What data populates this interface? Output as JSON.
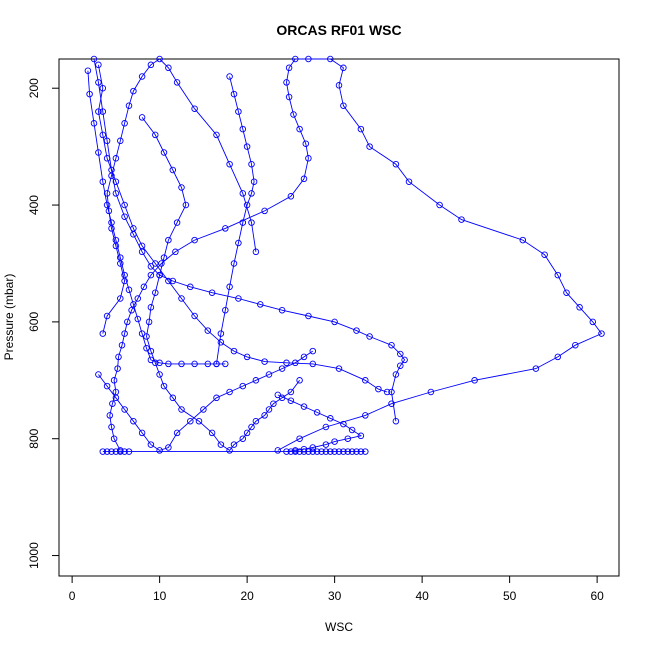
{
  "chart_data": {
    "type": "line",
    "title": "ORCAS RF01 WSC",
    "xlabel": "WSC",
    "ylabel": "Pressure (mbar)",
    "xlim": [
      -1.5,
      62.5
    ],
    "ylim": [
      1035,
      150
    ],
    "y_reversed": true,
    "x_ticks": [
      0,
      10,
      20,
      30,
      40,
      50,
      60
    ],
    "y_ticks": [
      200,
      400,
      600,
      800,
      1000
    ],
    "grid": false,
    "legend": "none",
    "color": "#0000ff",
    "marker": "open-circle",
    "series": [
      {
        "x": [
          5.5,
          4.8,
          4.5,
          4.3,
          4.6,
          5.0,
          4.8,
          5.2,
          5.3,
          5.7,
          6.0,
          6.3,
          6.8,
          7.5,
          8.2,
          9.0,
          10.2,
          11.8,
          14.0,
          17.5,
          22.0,
          25.0,
          26.5,
          27.0,
          26.7,
          26.0,
          25.3,
          24.8,
          24.5,
          24.8,
          25.5,
          27.0,
          29.5,
          31.0,
          30.5,
          31.0,
          33.0,
          34.0,
          37.0,
          38.5,
          42.0,
          44.5,
          51.5,
          54.0,
          55.5,
          56.5,
          58.0,
          59.5,
          60.5,
          57.5,
          55.5,
          53.0,
          46.0,
          41.0,
          36.5,
          33.5,
          29.0,
          26.0,
          23.5
        ],
        "y": [
          820,
          800,
          780,
          760,
          740,
          720,
          700,
          680,
          660,
          640,
          620,
          600,
          580,
          560,
          540,
          520,
          500,
          480,
          460,
          440,
          410,
          385,
          355,
          320,
          295,
          270,
          245,
          215,
          190,
          165,
          150,
          150,
          150,
          165,
          195,
          230,
          270,
          300,
          330,
          360,
          400,
          425,
          460,
          485,
          520,
          550,
          575,
          600,
          620,
          640,
          660,
          680,
          700,
          720,
          740,
          760,
          780,
          800,
          820
        ]
      },
      {
        "x": [
          8.0,
          9.5,
          10.5,
          11.5,
          12.5,
          13.0,
          12.0,
          11.0,
          10.5,
          10.0,
          9.5,
          9.0,
          8.8,
          8.5,
          9.0,
          9.5,
          10.0,
          10.5,
          11.5,
          12.5,
          14.5,
          16.0,
          17.0,
          18.0,
          18.5,
          19.5,
          20.0,
          20.5,
          21.0,
          22.0,
          22.5,
          23.0,
          24.0,
          25.0,
          26.0
        ],
        "y": [
          250,
          280,
          310,
          340,
          370,
          400,
          430,
          460,
          490,
          520,
          550,
          575,
          600,
          625,
          650,
          670,
          690,
          710,
          730,
          750,
          770,
          790,
          810,
          820,
          810,
          800,
          790,
          780,
          770,
          760,
          750,
          740,
          730,
          720,
          700
        ]
      },
      {
        "x": [
          3.5,
          4.0,
          5.5,
          6.0,
          5.5,
          5.0,
          4.5,
          4.2,
          4.0,
          4.5,
          5.0,
          5.5,
          6.0,
          6.5,
          7.0,
          8.0,
          9.0,
          10.0,
          11.0,
          12.0,
          14.0,
          16.5,
          18.0,
          19.5,
          20.5,
          21.0
        ],
        "y": [
          620,
          590,
          560,
          530,
          500,
          470,
          440,
          410,
          380,
          350,
          320,
          290,
          260,
          230,
          205,
          180,
          160,
          150,
          165,
          190,
          235,
          280,
          330,
          380,
          430,
          480
        ]
      },
      {
        "x": [
          1.8,
          2.0,
          2.5,
          3.0,
          3.5,
          4.0,
          4.5,
          5.0,
          5.5,
          6.0,
          6.5,
          7.0,
          7.5,
          8.0,
          8.5,
          9.0,
          10.0,
          11.0,
          12.5,
          14.0,
          15.5,
          16.5,
          17.5
        ],
        "y": [
          170,
          210,
          260,
          310,
          360,
          400,
          430,
          460,
          490,
          520,
          545,
          570,
          595,
          620,
          645,
          665,
          670,
          672,
          672,
          672,
          672,
          672,
          672
        ]
      },
      {
        "x": [
          16.5,
          17.0,
          17.5,
          18.0,
          18.5,
          19.0,
          19.5,
          20.0,
          20.5,
          20.8,
          20.5,
          20.0,
          19.5,
          19.0,
          18.5,
          18.0
        ],
        "y": [
          672,
          620,
          580,
          540,
          500,
          465,
          430,
          400,
          380,
          360,
          330,
          300,
          270,
          240,
          210,
          180
        ]
      },
      {
        "x": [
          2.5,
          3.0,
          3.5,
          4.0,
          4.5,
          5.0,
          6.0,
          7.0,
          8.0,
          9.0,
          10.0,
          11.5,
          13.5,
          16.0,
          19.0,
          21.5,
          24.0,
          27.0,
          30.0,
          32.5,
          34.0,
          36.5,
          37.5,
          38.0,
          37.5,
          37.0,
          36.5,
          37.0
        ],
        "y": [
          150,
          190,
          240,
          290,
          340,
          380,
          420,
          450,
          480,
          505,
          520,
          530,
          540,
          550,
          560,
          570,
          580,
          590,
          600,
          615,
          625,
          640,
          655,
          665,
          675,
          690,
          720,
          770
        ]
      },
      {
        "x": [
          3.0,
          3.5,
          3.0,
          3.5,
          4.0,
          5.0,
          6.0,
          7.0,
          8.0,
          9.5,
          11.0,
          12.5,
          14.0,
          15.5,
          17.0,
          18.5,
          20.0,
          22.0,
          24.5,
          27.5,
          30.5,
          33.5,
          35.0,
          36.0
        ],
        "y": [
          160,
          200,
          240,
          280,
          320,
          360,
          400,
          440,
          470,
          500,
          530,
          560,
          590,
          615,
          635,
          650,
          660,
          668,
          670,
          672,
          680,
          700,
          715,
          720
        ]
      },
      {
        "x": [
          3.0,
          4.0,
          5.0,
          6.0,
          7.0,
          8.0,
          9.0,
          10.0,
          11.0,
          12.0,
          13.5,
          15.0,
          16.5,
          18.0,
          19.5,
          21.0,
          22.5,
          24.0,
          25.5,
          26.5,
          27.5
        ],
        "y": [
          690,
          710,
          730,
          750,
          770,
          790,
          810,
          820,
          815,
          790,
          770,
          750,
          730,
          720,
          710,
          700,
          690,
          680,
          670,
          660,
          650
        ]
      },
      {
        "x": [
          23.5,
          25.0,
          26.5,
          28.0,
          29.5,
          31.0,
          32.0,
          33.0,
          31.5,
          30.0,
          29.0,
          27.5,
          26.5,
          25.5,
          24.5
        ],
        "y": [
          725,
          735,
          745,
          755,
          765,
          775,
          785,
          795,
          800,
          805,
          810,
          815,
          818,
          820,
          822
        ]
      },
      {
        "x": [
          3.5,
          4.0,
          4.5,
          5.0,
          5.5,
          6.0,
          6.5,
          25.0,
          25.5,
          26.0,
          26.5,
          27.0,
          27.5,
          28.0,
          28.5,
          29.0,
          29.5,
          30.0,
          30.5,
          31.0,
          31.5,
          32.0,
          32.5,
          33.0,
          33.5
        ],
        "y": [
          822,
          822,
          822,
          822,
          822,
          822,
          822,
          822,
          822,
          822,
          822,
          822,
          822,
          822,
          822,
          822,
          822,
          822,
          822,
          822,
          822,
          822,
          822,
          822,
          822
        ]
      }
    ]
  }
}
